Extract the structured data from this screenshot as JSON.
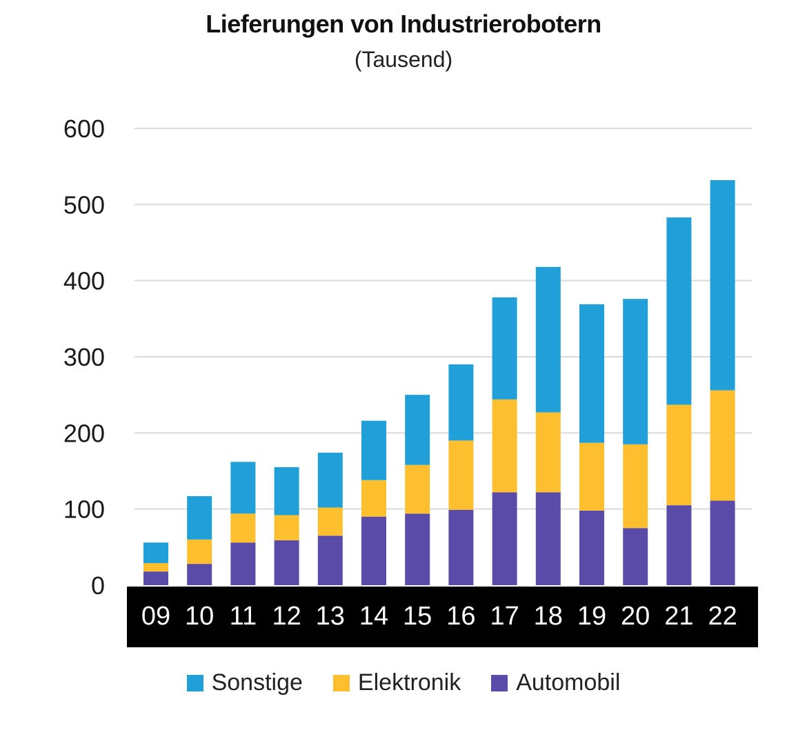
{
  "chart_data": {
    "type": "bar",
    "stacked": true,
    "title": "Lieferungen von Industrierobotern",
    "subtitle": "(Tausend)",
    "categories": [
      "09",
      "10",
      "11",
      "12",
      "13",
      "14",
      "15",
      "16",
      "17",
      "18",
      "19",
      "20",
      "21",
      "22"
    ],
    "series": [
      {
        "name": "Automobil",
        "color": "#5a4ba8",
        "values": [
          18,
          28,
          56,
          59,
          65,
          90,
          94,
          99,
          122,
          122,
          98,
          75,
          105,
          111
        ]
      },
      {
        "name": "Elektronik",
        "color": "#fdbf2d",
        "values": [
          11,
          32,
          38,
          33,
          37,
          48,
          64,
          91,
          122,
          105,
          89,
          110,
          132,
          145
        ]
      },
      {
        "name": "Sonstige",
        "color": "#209fd8",
        "values": [
          27,
          57,
          68,
          63,
          72,
          78,
          92,
          100,
          134,
          191,
          182,
          191,
          246,
          276
        ]
      }
    ],
    "ylim": [
      0,
      600
    ],
    "yticks": [
      0,
      100,
      200,
      300,
      400,
      500,
      600
    ],
    "xlabel": "",
    "ylabel": "",
    "grid": true,
    "legend_position": "bottom"
  },
  "legend": {
    "items": [
      {
        "label": "Sonstige",
        "color": "#209fd8"
      },
      {
        "label": "Elektronik",
        "color": "#fdbf2d"
      },
      {
        "label": "Automobil",
        "color": "#5a4ba8"
      }
    ]
  },
  "colors": {
    "axis_band": "#000000",
    "grid": "#d9d9d9",
    "tick_text": "#1a1a1a"
  }
}
